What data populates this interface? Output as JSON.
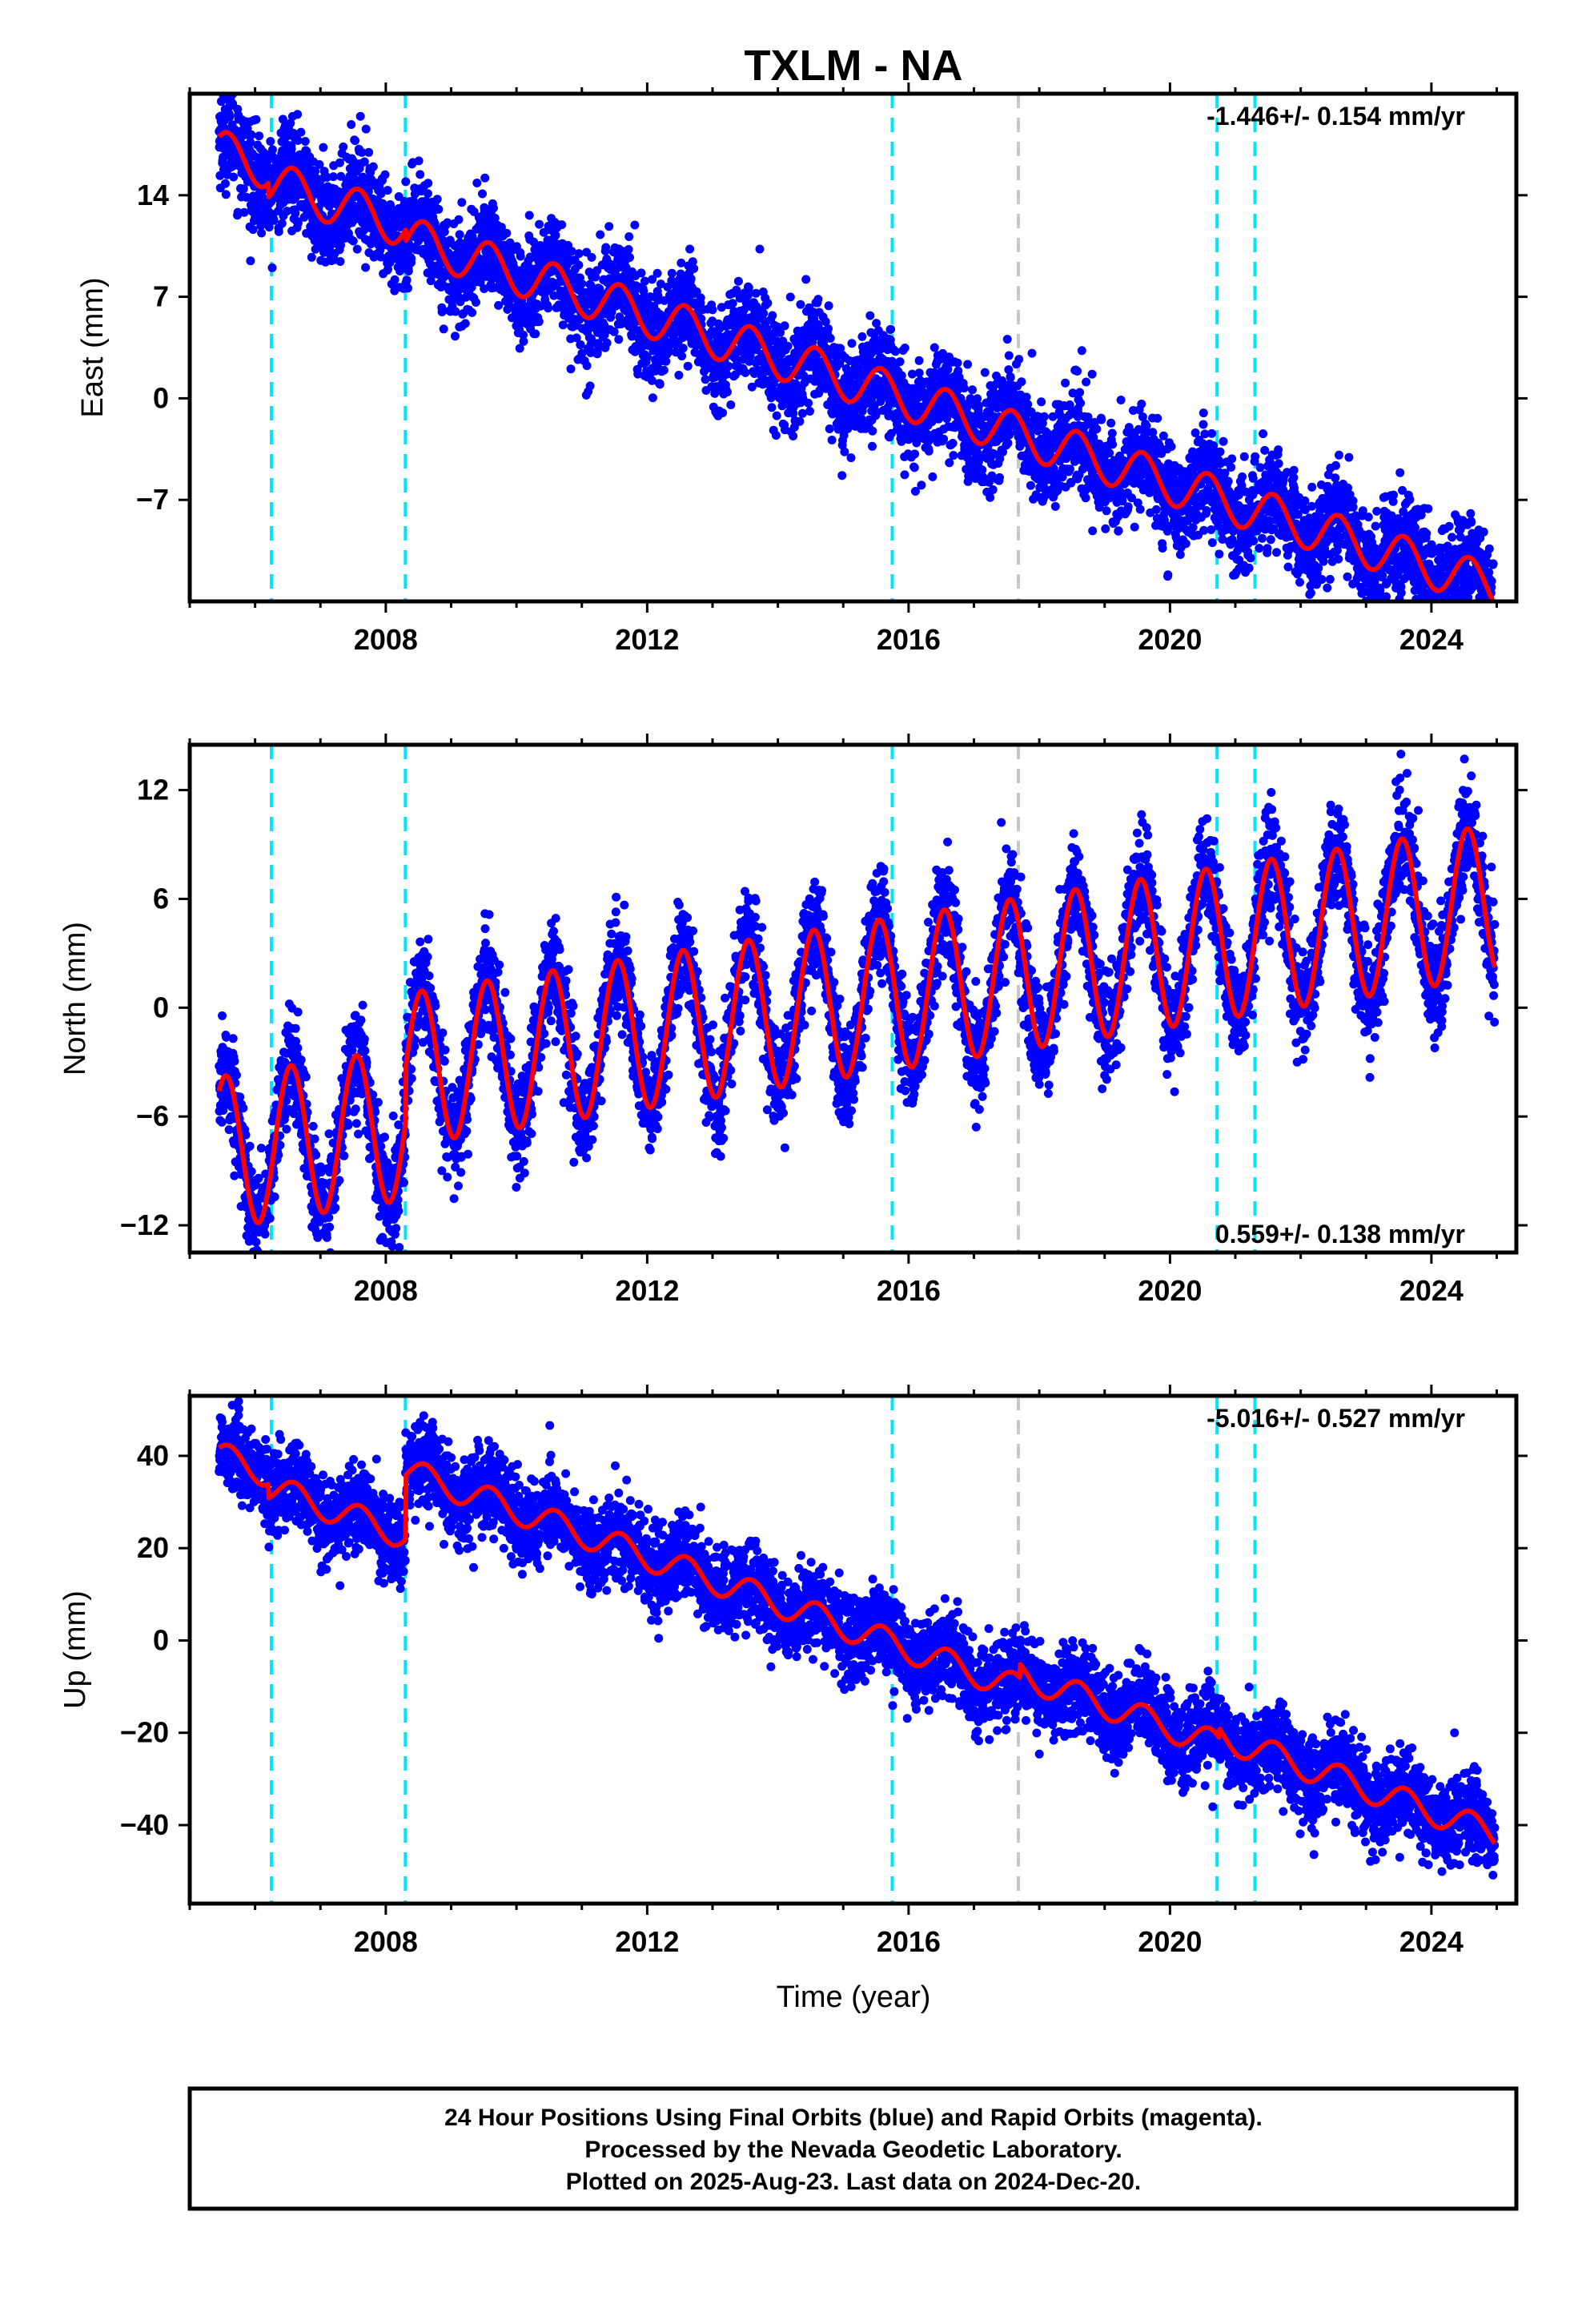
{
  "colors": {
    "observations": "#0000ff",
    "model_fit": "#ff0000",
    "equipment_change": "#00e5ff",
    "other_event": "#c8c8c8",
    "frame": "#000000"
  },
  "chart_data": [
    {
      "type": "scatter",
      "id": "east",
      "title": "TXLM - NA",
      "xlabel": "",
      "ylabel": "East (mm)",
      "rate_label": "-1.446+/- 0.154 mm/yr",
      "rate_position": "top-right",
      "xlim": [
        2005.0,
        2025.3
      ],
      "ylim": [
        -14.0,
        21.0
      ],
      "xticks": [
        2008,
        2012,
        2016,
        2020,
        2024
      ],
      "yticks": [
        14,
        7,
        0,
        -7
      ],
      "grid": false,
      "model": {
        "start": 2005.45,
        "end": 2024.97,
        "intercept": 17.0,
        "trend": -1.446,
        "annual_amp": 1.5,
        "annual_phase": 0.58,
        "noise": 1.7,
        "offsets": [
          {
            "t": 2006.2,
            "d": -1.0
          },
          {
            "t": 2008.3,
            "d": -0.8
          },
          {
            "t": 2015.7,
            "d": 0.0
          },
          {
            "t": 2020.7,
            "d": 0.0
          },
          {
            "t": 2021.3,
            "d": 0.0
          }
        ]
      },
      "vlines_cyan": [
        2006.25,
        2008.3,
        2015.75,
        2020.72,
        2021.3
      ],
      "vlines_gray": [
        2017.68
      ]
    },
    {
      "type": "scatter",
      "id": "north",
      "title": "",
      "xlabel": "",
      "ylabel": "North (mm)",
      "rate_label": "0.559+/- 0.138 mm/yr",
      "rate_position": "bottom-right",
      "xlim": [
        2005.0,
        2025.3
      ],
      "ylim": [
        -13.5,
        14.5
      ],
      "xticks": [
        2008,
        2012,
        2016,
        2020,
        2024
      ],
      "yticks": [
        12,
        6,
        0,
        -6,
        -12
      ],
      "grid": false,
      "model": {
        "start": 2005.45,
        "end": 2024.97,
        "intercept": -8.0,
        "trend": 0.559,
        "annual_amp": 4.2,
        "annual_phase": 0.55,
        "noise": 1.4,
        "offsets": [
          {
            "t": 2008.3,
            "d": 3.0
          }
        ]
      },
      "vlines_cyan": [
        2006.25,
        2008.3,
        2015.75,
        2020.72,
        2021.3
      ],
      "vlines_gray": [
        2017.68
      ]
    },
    {
      "type": "scatter",
      "id": "up",
      "title": "",
      "xlabel": "Time (year)",
      "ylabel": "Up (mm)",
      "rate_label": "-5.016+/- 0.527 mm/yr",
      "rate_position": "top-right",
      "xlim": [
        2005.0,
        2025.3
      ],
      "ylim": [
        -57.0,
        53.0
      ],
      "xticks": [
        2008,
        2012,
        2016,
        2020,
        2024
      ],
      "yticks": [
        40,
        20,
        0,
        -20,
        -40
      ],
      "grid": false,
      "model": {
        "start": 2005.45,
        "end": 2024.97,
        "intercept": 40.0,
        "trend": -5.016,
        "annual_amp": 3.0,
        "annual_phase": 0.6,
        "noise": 4.5,
        "offsets": [
          {
            "t": 2006.2,
            "d": -3.0
          },
          {
            "t": 2008.3,
            "d": 14.0
          },
          {
            "t": 2017.7,
            "d": 3.0
          },
          {
            "t": 2020.75,
            "d": 2.0
          }
        ]
      },
      "vlines_cyan": [
        2006.25,
        2008.3,
        2015.75,
        2020.72,
        2021.3
      ],
      "vlines_gray": [
        2017.68
      ]
    }
  ],
  "footer": {
    "line1": "24 Hour Positions Using Final Orbits (blue) and Rapid Orbits (magenta).",
    "line2": "Processed by the Nevada Geodetic Laboratory.",
    "line3": "Plotted on 2025-Aug-23. Last data on 2024-Dec-20."
  }
}
